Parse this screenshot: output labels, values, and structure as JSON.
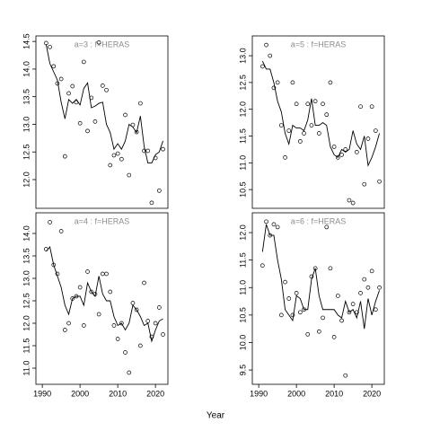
{
  "xlabel": "Year",
  "chart_data": [
    {
      "type": "scatter",
      "title": "a=3 : f=HERAS",
      "x": [
        1991,
        1992,
        1993,
        1994,
        1995,
        1996,
        1997,
        1998,
        1999,
        2000,
        2001,
        2002,
        2003,
        2004,
        2005,
        2006,
        2007,
        2008,
        2009,
        2010,
        2011,
        2012,
        2013,
        2014,
        2015,
        2016,
        2017,
        2018,
        2019,
        2020,
        2021,
        2022
      ],
      "series": [
        {
          "style": "points",
          "color": "#000000",
          "values": [
            14.47,
            14.4,
            14.05,
            13.74,
            13.82,
            12.42,
            13.56,
            13.69,
            13.4,
            13.02,
            14.13,
            12.88,
            13.48,
            13.05,
            14.48,
            13.7,
            13.62,
            12.26,
            12.44,
            12.47,
            12.37,
            13.17,
            12.08,
            12.99,
            12.86,
            13.38,
            12.52,
            12.52,
            11.58,
            12.39,
            11.8,
            12.55
          ]
        },
        {
          "style": "line",
          "color": "#000000",
          "values": [
            14.45,
            14.1,
            13.95,
            13.8,
            13.4,
            13.1,
            13.45,
            13.38,
            13.45,
            13.35,
            13.65,
            13.75,
            13.3,
            13.33,
            13.38,
            13.4,
            13.0,
            12.85,
            12.55,
            12.65,
            12.55,
            12.7,
            13.0,
            12.95,
            12.85,
            13.15,
            12.6,
            12.3,
            12.3,
            12.45,
            12.5,
            12.7
          ]
        }
      ],
      "xlim": [
        1988.3,
        2023.3
      ],
      "ylim": [
        11.48,
        14.6
      ],
      "yticks": [
        {
          "value": 12,
          "label": "12.0"
        },
        12.5,
        {
          "value": 13,
          "label": "13.0"
        },
        13.5,
        {
          "value": 14,
          "label": "14.0"
        },
        14.5
      ]
    },
    {
      "type": "scatter",
      "title": "a=5 : f=HERAS",
      "x": [
        1991,
        1992,
        1993,
        1994,
        1995,
        1996,
        1997,
        1998,
        1999,
        2000,
        2001,
        2002,
        2003,
        2004,
        2005,
        2006,
        2007,
        2008,
        2009,
        2010,
        2011,
        2012,
        2013,
        2014,
        2015,
        2016,
        2017,
        2018,
        2019,
        2020,
        2021,
        2022
      ],
      "series": [
        {
          "style": "points",
          "color": "#000000",
          "values": [
            12.8,
            13.2,
            13.0,
            12.4,
            12.5,
            11.7,
            11.1,
            11.6,
            12.5,
            12.1,
            11.4,
            11.55,
            12.1,
            11.7,
            12.15,
            11.55,
            12.1,
            11.9,
            12.5,
            11.3,
            11.1,
            11.15,
            11.25,
            10.3,
            10.25,
            11.2,
            12.05,
            10.6,
            11.45,
            12.05,
            11.6,
            10.65
          ]
        },
        {
          "style": "line",
          "color": "#000000",
          "values": [
            12.9,
            12.75,
            12.75,
            12.5,
            12.15,
            11.95,
            11.55,
            11.35,
            11.7,
            11.65,
            11.65,
            11.6,
            11.8,
            12.2,
            11.7,
            11.7,
            11.75,
            11.7,
            11.3,
            11.15,
            11.1,
            11.25,
            11.2,
            11.25,
            11.6,
            11.35,
            11.25,
            11.5,
            10.95,
            11.1,
            11.3,
            11.55
          ]
        }
      ],
      "xlim": [
        1988.3,
        2023.3
      ],
      "ylim": [
        10.15,
        13.37
      ],
      "yticks": [
        10.5,
        {
          "value": 11,
          "label": "11.0"
        },
        11.5,
        {
          "value": 12,
          "label": "12.0"
        },
        12.5,
        {
          "value": 13,
          "label": "13.0"
        }
      ]
    },
    {
      "type": "scatter",
      "title": "a=4 : f=HERAS",
      "x": [
        1991,
        1992,
        1993,
        1994,
        1995,
        1996,
        1997,
        1998,
        1999,
        2000,
        2001,
        2002,
        2003,
        2004,
        2005,
        2006,
        2007,
        2008,
        2009,
        2010,
        2011,
        2012,
        2013,
        2014,
        2015,
        2016,
        2017,
        2018,
        2019,
        2020,
        2021,
        2022
      ],
      "series": [
        {
          "style": "points",
          "color": "#000000",
          "values": [
            13.65,
            14.25,
            13.3,
            13.1,
            14.05,
            11.85,
            12.0,
            12.55,
            12.6,
            12.8,
            11.95,
            13.15,
            12.7,
            12.65,
            12.2,
            13.1,
            13.1,
            12.7,
            11.95,
            11.65,
            12.0,
            11.35,
            10.9,
            12.45,
            12.3,
            11.5,
            12.9,
            12.05,
            11.7,
            12.0,
            12.35,
            11.75
          ]
        },
        {
          "style": "line",
          "color": "#000000",
          "values": [
            13.6,
            13.7,
            13.3,
            13.05,
            12.8,
            12.4,
            12.2,
            12.55,
            12.6,
            12.6,
            12.4,
            12.9,
            12.7,
            12.6,
            13.05,
            12.65,
            12.5,
            12.5,
            12.15,
            11.95,
            12.0,
            11.85,
            12.0,
            12.4,
            12.3,
            12.15,
            11.95,
            12.0,
            11.6,
            11.85,
            12.05,
            12.1
          ]
        }
      ],
      "xlim": [
        1988.3,
        2023.3
      ],
      "ylim": [
        10.64,
        14.46
      ],
      "xticks": [
        1990,
        2000,
        2010,
        2020
      ],
      "yticks": [
        {
          "value": 11,
          "label": "11.0"
        },
        11.5,
        {
          "value": 12,
          "label": "12.0"
        },
        12.5,
        {
          "value": 13,
          "label": "13.0"
        },
        13.5,
        {
          "value": 14,
          "label": "14.0"
        }
      ]
    },
    {
      "type": "scatter",
      "title": "a=6 : f=HERAS",
      "x": [
        1991,
        1992,
        1993,
        1994,
        1995,
        1996,
        1997,
        1998,
        1999,
        2000,
        2001,
        2002,
        2003,
        2004,
        2005,
        2006,
        2007,
        2008,
        2009,
        2010,
        2011,
        2012,
        2013,
        2014,
        2015,
        2016,
        2017,
        2018,
        2019,
        2020,
        2021,
        2022
      ],
      "series": [
        {
          "style": "points",
          "color": "#000000",
          "values": [
            11.4,
            12.2,
            11.95,
            12.15,
            12.1,
            10.5,
            11.1,
            10.8,
            10.5,
            10.9,
            10.55,
            10.6,
            10.15,
            11.2,
            11.35,
            10.2,
            10.45,
            12.1,
            11.35,
            10.1,
            10.85,
            10.4,
            9.4,
            10.55,
            10.7,
            10.55,
            10.9,
            11.15,
            11.0,
            11.3,
            10.6,
            11.0
          ]
        },
        {
          "style": "line",
          "color": "#000000",
          "values": [
            11.65,
            12.15,
            11.95,
            11.95,
            11.5,
            11.15,
            10.6,
            10.5,
            10.4,
            10.85,
            10.8,
            10.6,
            10.6,
            11.15,
            11.35,
            10.85,
            10.6,
            10.6,
            10.6,
            10.6,
            10.5,
            10.45,
            10.75,
            10.55,
            10.6,
            10.45,
            10.75,
            10.25,
            10.8,
            10.5,
            10.75,
            10.95
          ]
        }
      ],
      "xlim": [
        1988.3,
        2023.3
      ],
      "ylim": [
        9.24,
        12.36
      ],
      "xticks": [
        1990,
        2000,
        2010,
        2020
      ],
      "yticks": [
        9.5,
        {
          "value": 10,
          "label": "10.0"
        },
        10.5,
        {
          "value": 11,
          "label": "11.0"
        },
        11.5,
        {
          "value": 12,
          "label": "12.0"
        }
      ]
    }
  ]
}
